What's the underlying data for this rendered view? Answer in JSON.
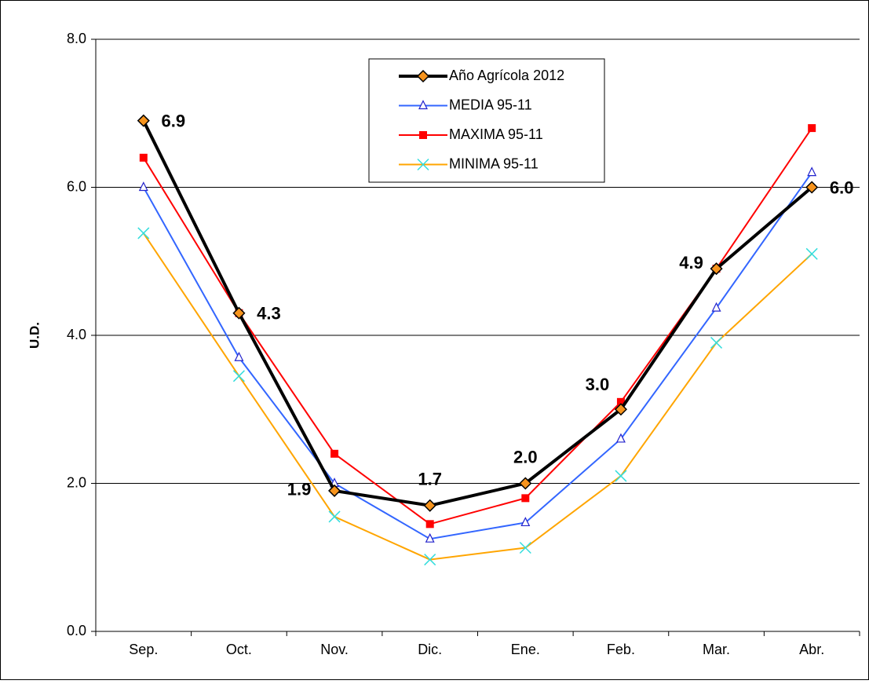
{
  "chart_data": {
    "type": "line",
    "y_label": "U.D.",
    "categories": [
      "Sep.",
      "Oct.",
      "Nov.",
      "Dic.",
      "Ene.",
      "Feb.",
      "Mar.",
      "Abr."
    ],
    "ylim": [
      0,
      8
    ],
    "yticks": [
      {
        "value": 0,
        "label": "0.0"
      },
      {
        "value": 2,
        "label": "2.0"
      },
      {
        "value": 4,
        "label": "4.0"
      },
      {
        "value": 6,
        "label": "6.0"
      },
      {
        "value": 8,
        "label": "8.0"
      }
    ],
    "grid": true,
    "legend": "top",
    "series": [
      {
        "name": "Año  Agrícola 2012",
        "color": "#000000",
        "marker": "diamond",
        "marker_color": "#f7941d",
        "values": [
          6.9,
          4.3,
          1.9,
          1.7,
          2.0,
          3.0,
          4.9,
          6.0
        ],
        "value_labels": [
          "6.9",
          "4.3",
          "1.9",
          "1.7",
          "2.0",
          "3.0",
          "4.9",
          "6.0"
        ]
      },
      {
        "name": "MEDIA 95-11",
        "color": "#3366ff",
        "marker": "triangle",
        "marker_color": "#2222cc",
        "values": [
          6.0,
          3.7,
          2.0,
          1.25,
          1.47,
          2.6,
          4.37,
          6.2
        ]
      },
      {
        "name": "MAXIMA 95-11",
        "color": "#ff0000",
        "marker": "square",
        "marker_color": "#ff0000",
        "values": [
          6.4,
          4.3,
          2.4,
          1.45,
          1.8,
          3.1,
          4.9,
          6.8
        ]
      },
      {
        "name": "MINIMA 95-11",
        "color": "#ffa500",
        "marker": "x",
        "marker_color": "#33dddd",
        "values": [
          5.38,
          3.45,
          1.55,
          0.97,
          1.13,
          2.1,
          3.9,
          5.1
        ]
      }
    ]
  }
}
